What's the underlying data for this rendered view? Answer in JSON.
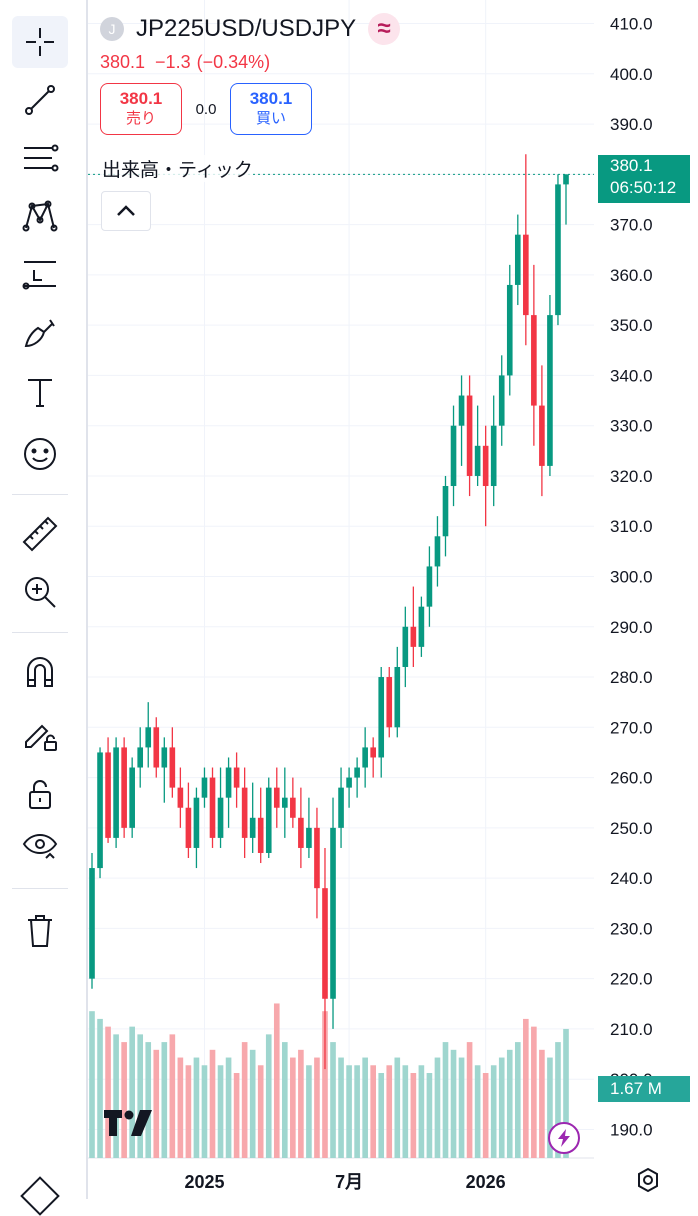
{
  "toolbar": {
    "items": [
      "crosshair-icon",
      "trend-line-icon",
      "fib-icon",
      "pattern-icon",
      "prediction-icon",
      "brush-icon",
      "text-icon",
      "emoji-icon",
      "ruler-icon",
      "zoom-in-icon",
      "magnet-icon",
      "lock-drawing-icon",
      "lock-icon",
      "eye-icon",
      "trash-icon"
    ]
  },
  "legend": {
    "logo_letter": "J",
    "symbol": "JP225USD/USDJPY",
    "badge": "≈",
    "last": "380.1",
    "change": "−1.3",
    "change_pct": "(−0.34%)",
    "sell_price": "380.1",
    "sell_label": "売り",
    "spread": "0.0",
    "buy_price": "380.1",
    "buy_label": "買い",
    "volume_label": "出来高・ティック"
  },
  "price_tag": {
    "price": "380.1",
    "countdown": "06:50:12"
  },
  "volume_tag": "1.67 M",
  "colors": {
    "up": "#089981",
    "down": "#f23645",
    "vol_up": "#9fd6cf",
    "vol_down": "#f7a8ac",
    "grid": "#f0f3fa"
  },
  "chart_data": {
    "type": "candlestick",
    "symbol": "JP225USD/USDJPY",
    "y_ticks": [
      "410.0",
      "400.0",
      "390.0",
      "380.0",
      "370.0",
      "360.0",
      "350.0",
      "340.0",
      "330.0",
      "320.0",
      "310.0",
      "300.0",
      "290.0",
      "280.0",
      "270.0",
      "260.0",
      "250.0",
      "240.0",
      "230.0",
      "220.0",
      "210.0",
      "200.0",
      "190.0"
    ],
    "ylim": [
      188.5,
      411.5
    ],
    "x_labels": [
      {
        "label": "2025",
        "index": 14
      },
      {
        "label": "7月",
        "index": 32
      },
      {
        "label": "2026",
        "index": 49
      }
    ],
    "ohlc": [
      [
        220,
        245,
        218,
        242
      ],
      [
        242,
        266,
        240,
        265
      ],
      [
        265,
        268,
        247,
        248
      ],
      [
        248,
        268,
        246,
        266
      ],
      [
        266,
        268,
        248,
        250
      ],
      [
        250,
        264,
        248,
        262
      ],
      [
        262,
        270,
        258,
        266
      ],
      [
        266,
        275,
        262,
        270
      ],
      [
        270,
        272,
        260,
        262
      ],
      [
        262,
        268,
        255,
        266
      ],
      [
        266,
        270,
        256,
        258
      ],
      [
        258,
        262,
        250,
        254
      ],
      [
        254,
        259,
        244,
        246
      ],
      [
        246,
        258,
        242,
        256
      ],
      [
        256,
        262,
        254,
        260
      ],
      [
        260,
        262,
        246,
        248
      ],
      [
        248,
        262,
        246,
        256
      ],
      [
        256,
        264,
        250,
        262
      ],
      [
        262,
        265,
        254,
        258
      ],
      [
        258,
        262,
        244,
        248
      ],
      [
        248,
        259,
        245,
        252
      ],
      [
        252,
        258,
        243,
        245
      ],
      [
        245,
        260,
        244,
        258
      ],
      [
        258,
        262,
        250,
        254
      ],
      [
        254,
        262,
        248,
        256
      ],
      [
        256,
        260,
        250,
        252
      ],
      [
        252,
        258,
        242,
        246
      ],
      [
        246,
        256,
        244,
        250
      ],
      [
        250,
        254,
        232,
        238
      ],
      [
        238,
        246,
        202,
        216
      ],
      [
        216,
        256,
        210,
        250
      ],
      [
        250,
        262,
        246,
        258
      ],
      [
        258,
        262,
        254,
        260
      ],
      [
        260,
        264,
        256,
        262
      ],
      [
        262,
        270,
        258,
        266
      ],
      [
        266,
        268,
        260,
        264
      ],
      [
        264,
        282,
        260,
        280
      ],
      [
        280,
        282,
        268,
        270
      ],
      [
        270,
        286,
        268,
        282
      ],
      [
        282,
        294,
        278,
        290
      ],
      [
        290,
        298,
        282,
        286
      ],
      [
        286,
        296,
        284,
        294
      ],
      [
        294,
        306,
        290,
        302
      ],
      [
        302,
        312,
        298,
        308
      ],
      [
        308,
        320,
        304,
        318
      ],
      [
        318,
        334,
        314,
        330
      ],
      [
        330,
        340,
        322,
        336
      ],
      [
        336,
        340,
        316,
        320
      ],
      [
        320,
        334,
        318,
        326
      ],
      [
        326,
        330,
        310,
        318
      ],
      [
        318,
        336,
        314,
        330
      ],
      [
        330,
        344,
        326,
        340
      ],
      [
        340,
        362,
        336,
        358
      ],
      [
        358,
        372,
        354,
        368
      ],
      [
        368,
        384,
        346,
        352
      ],
      [
        352,
        362,
        326,
        334
      ],
      [
        334,
        342,
        316,
        322
      ],
      [
        322,
        356,
        320,
        352
      ],
      [
        352,
        380,
        350,
        378
      ],
      [
        378,
        380,
        370,
        380
      ]
    ],
    "volume": [
      1.9,
      1.8,
      1.7,
      1.6,
      1.5,
      1.7,
      1.6,
      1.5,
      1.4,
      1.5,
      1.6,
      1.3,
      1.2,
      1.3,
      1.2,
      1.4,
      1.2,
      1.3,
      1.1,
      1.5,
      1.4,
      1.2,
      1.6,
      2.0,
      1.5,
      1.3,
      1.4,
      1.2,
      1.3,
      1.9,
      1.5,
      1.3,
      1.2,
      1.2,
      1.3,
      1.2,
      1.1,
      1.2,
      1.3,
      1.2,
      1.1,
      1.2,
      1.1,
      1.3,
      1.5,
      1.4,
      1.3,
      1.5,
      1.2,
      1.1,
      1.2,
      1.3,
      1.4,
      1.5,
      1.8,
      1.7,
      1.4,
      1.3,
      1.5,
      1.67
    ]
  }
}
